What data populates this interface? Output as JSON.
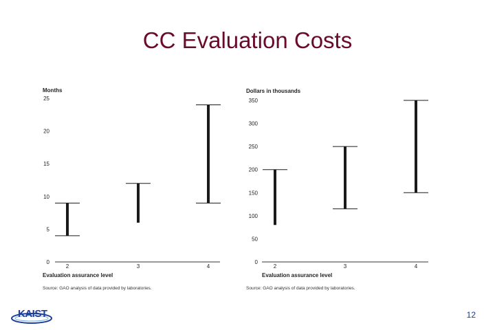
{
  "slide": {
    "title": "CC Evaluation Costs",
    "page_number": "12",
    "logo_text": "KAIST"
  },
  "chart_data": [
    {
      "type": "range",
      "ylabel": "Months",
      "xlabel": "Evaluation assurance level",
      "source": "Source: GAO analysis of data provided by laboratories.",
      "categories": [
        "2",
        "3",
        "4"
      ],
      "yticks": [
        0,
        5,
        10,
        15,
        20,
        25
      ],
      "ylim": [
        0,
        25
      ],
      "ranges": [
        {
          "category": "2",
          "low": 4,
          "high": 9
        },
        {
          "category": "3",
          "low": 6,
          "high": 12
        },
        {
          "category": "4",
          "low": 9,
          "high": 24
        }
      ]
    },
    {
      "type": "range",
      "ylabel": "Dollars in thousands",
      "xlabel": "Evaluation assurance level",
      "source": "Source: GAO analysis of data provided by laboratories.",
      "categories": [
        "2",
        "3",
        "4"
      ],
      "yticks": [
        0,
        50,
        100,
        150,
        200,
        250,
        300,
        350
      ],
      "ylim": [
        0,
        350
      ],
      "ranges": [
        {
          "category": "2",
          "low": 80,
          "high": 200
        },
        {
          "category": "3",
          "low": 115,
          "high": 250
        },
        {
          "category": "4",
          "low": 150,
          "high": 350
        }
      ]
    }
  ]
}
